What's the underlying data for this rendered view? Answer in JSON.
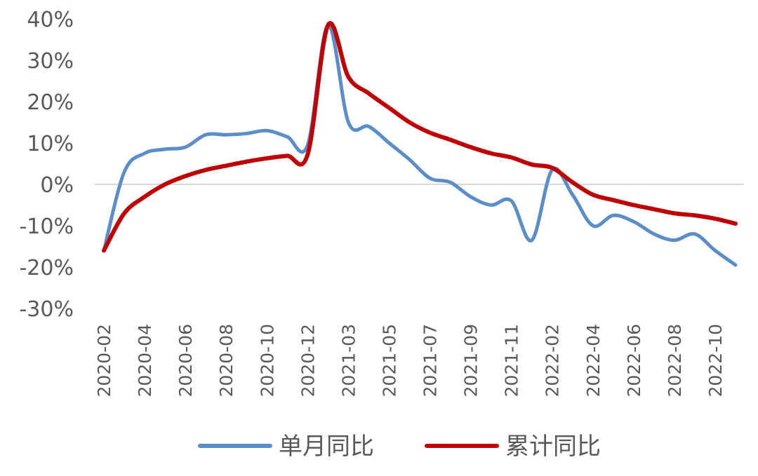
{
  "chart_data": {
    "type": "line",
    "title": "",
    "xlabel": "",
    "ylabel": "",
    "ylim": [
      -30,
      40
    ],
    "y_ticks": [
      40,
      30,
      20,
      10,
      0,
      -10,
      -20,
      -30
    ],
    "y_tick_labels": [
      "40%",
      "30%",
      "20%",
      "10%",
      "0%",
      "-10%",
      "-20%",
      "-30%"
    ],
    "x": [
      "2020-02",
      "2020-03",
      "2020-04",
      "2020-05",
      "2020-06",
      "2020-07",
      "2020-08",
      "2020-09",
      "2020-10",
      "2020-11",
      "2020-12",
      "2021-02",
      "2021-03",
      "2021-04",
      "2021-05",
      "2021-06",
      "2021-07",
      "2021-08",
      "2021-09",
      "2021-10",
      "2021-11",
      "2021-12",
      "2022-02",
      "2022-03",
      "2022-04",
      "2022-05",
      "2022-06",
      "2022-07",
      "2022-08",
      "2022-09",
      "2022-10",
      "2022-11"
    ],
    "x_tick_labels": [
      "2020-02",
      "2020-04",
      "2020-06",
      "2020-08",
      "2020-10",
      "2020-12",
      "2021-03",
      "2021-05",
      "2021-07",
      "2021-09",
      "2021-11",
      "2022-02",
      "2022-04",
      "2022-06",
      "2022-08",
      "2022-10"
    ],
    "grid": false,
    "zero_line": true,
    "legend": "bottom",
    "series": [
      {
        "name": "单月同比",
        "color": "#5B8DC9",
        "values": [
          -16,
          3,
          7.5,
          8.5,
          9,
          12,
          12,
          12.3,
          13,
          11.5,
          9.5,
          38.5,
          15,
          14,
          10,
          6,
          1.5,
          0.5,
          -3,
          -5,
          -4,
          -13.5,
          3.5,
          -2.5,
          -10,
          -7.5,
          -9,
          -12,
          -13.5,
          -12,
          -16,
          -19.5
        ]
      },
      {
        "name": "累计同比",
        "color": "#C00000",
        "values": [
          -16,
          -7,
          -3,
          0,
          2,
          3.5,
          4.5,
          5.5,
          6.3,
          6.9,
          7.2,
          38.5,
          26,
          22,
          18.5,
          15,
          12.5,
          10.8,
          9,
          7.5,
          6.5,
          4.8,
          4,
          0.5,
          -2.5,
          -3.8,
          -5,
          -6,
          -7,
          -7.5,
          -8.3,
          -9.5
        ]
      }
    ]
  }
}
